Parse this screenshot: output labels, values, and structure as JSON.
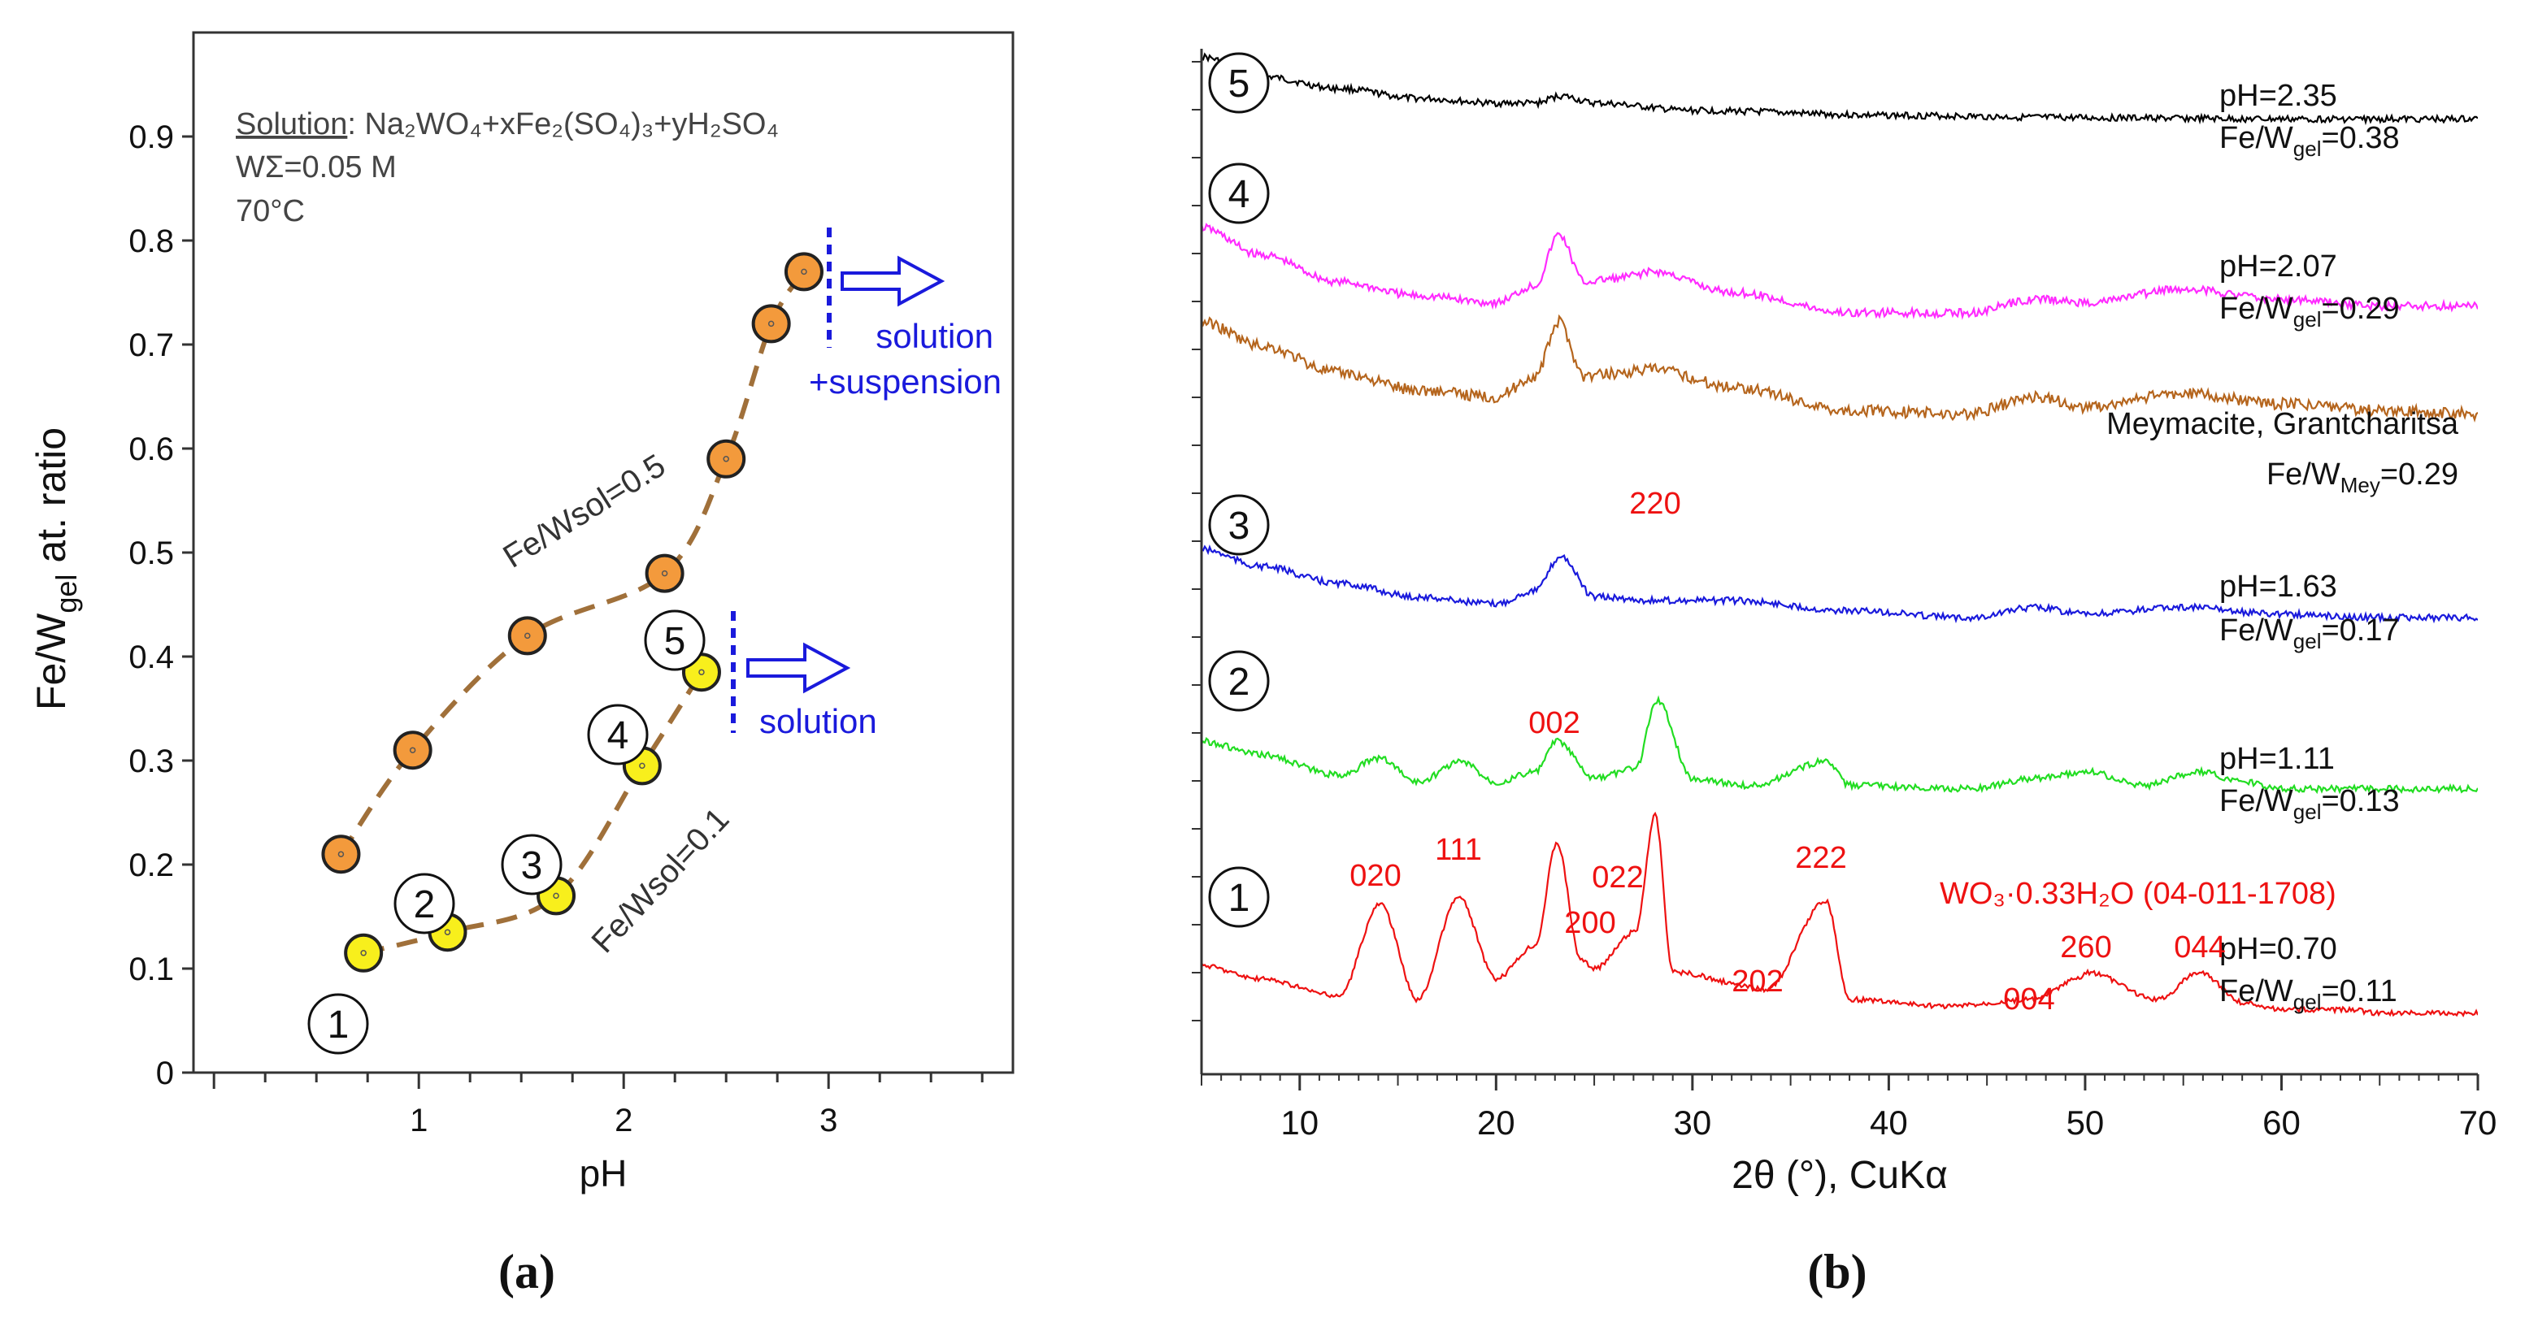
{
  "panel_a": {
    "label": "(a)",
    "solution_prefix": "Solution",
    "solution_formula": ": Na₂WO₄+xFe₂(SO₄)₃+yH₂SO₄",
    "w_total": "WΣ=0.05 M",
    "temperature": "70°C",
    "arrow_upper_label_1": "solution",
    "arrow_upper_label_2": "+suspension",
    "arrow_lower_label": "solution",
    "curve_label_upper": "Fe/Wsol=0.5",
    "curve_label_lower": "Fe/Wsol=0.1",
    "point_markers": [
      "1",
      "2",
      "3",
      "4",
      "5"
    ]
  },
  "panel_b": {
    "label": "(b)",
    "curve_markers": [
      "5",
      "4",
      "3",
      "2",
      "1"
    ],
    "annotations": [
      {
        "line1": "pH=2.35",
        "line2": "Fe/Wgel=0.38"
      },
      {
        "line1": "pH=2.07",
        "line2": "Fe/Wgel=0.29"
      },
      {
        "line1": "Meymacite, Grantcharitsa",
        "line2": "Fe/WMey=0.29"
      },
      {
        "line1": "pH=1.63",
        "line2": "Fe/Wgel=0.17"
      },
      {
        "line1": "pH=1.11",
        "line2": "Fe/Wgel=0.13"
      },
      {
        "line1": "pH=0.70",
        "line2": "Fe/Wgel=0.11"
      }
    ],
    "phase_label": "WO₃·0.33H₂O (04-011-1708)",
    "peak_labels": [
      "020",
      "111",
      "002",
      "200",
      "022",
      "220",
      "202",
      "222",
      "004",
      "260",
      "044"
    ]
  },
  "colors": {
    "orange_marker": "#f39a3c",
    "yellow_marker": "#f8ef1c",
    "dashed_curve": "#a0703a",
    "arrow_blue": "#1a1adc",
    "xrd_black": "#000000",
    "xrd_magenta": "#ff2bff",
    "xrd_brown": "#b5651d",
    "xrd_blue": "#1a1adc",
    "xrd_green": "#22dd22",
    "xrd_red": "#ee1111"
  },
  "chart_data": [
    {
      "type": "scatter",
      "title": "",
      "xlabel": "pH",
      "ylabel": "Fe/Wgel at. ratio",
      "xlim": [
        -0.1,
        3.9
      ],
      "ylim": [
        0,
        1.0
      ],
      "xticks": [
        "1",
        "2",
        "3"
      ],
      "yticks": [
        "0",
        "0.1",
        "0.2",
        "0.3",
        "0.4",
        "0.5",
        "0.6",
        "0.7",
        "0.8",
        "0.9"
      ],
      "series": [
        {
          "name": "Fe/Wsol=0.5",
          "x": [
            0.62,
            0.97,
            1.53,
            2.2,
            2.5,
            2.72,
            2.88
          ],
          "y": [
            0.21,
            0.31,
            0.42,
            0.48,
            0.59,
            0.72,
            0.77
          ]
        },
        {
          "name": "Fe/Wsol=0.1",
          "x": [
            0.73,
            1.14,
            1.67,
            2.09,
            2.38
          ],
          "y": [
            0.115,
            0.135,
            0.17,
            0.295,
            0.385
          ]
        }
      ]
    },
    {
      "type": "line",
      "title": "",
      "xlabel": "2θ (°), CuKα",
      "ylabel": "",
      "xlim": [
        5,
        70
      ],
      "xticks": [
        "10",
        "20",
        "30",
        "40",
        "50",
        "60",
        "70"
      ],
      "series": [
        {
          "name": "5 pH=2.35",
          "x": [
            5,
            8,
            12,
            16,
            20,
            22,
            23.3,
            25,
            30,
            40,
            50,
            60,
            70
          ],
          "y": [
            0.0,
            0.08,
            0.13,
            0.17,
            0.19,
            0.19,
            0.16,
            0.19,
            0.22,
            0.24,
            0.25,
            0.255,
            0.255
          ]
        },
        {
          "name": "4 pH=2.07",
          "x": [
            5,
            8,
            12,
            16,
            20,
            22,
            23.2,
            24.5,
            26,
            28,
            32,
            38,
            44,
            47.5,
            50,
            55,
            60,
            65,
            70
          ],
          "y": [
            0.0,
            0.08,
            0.16,
            0.2,
            0.22,
            0.17,
            0.02,
            0.16,
            0.15,
            0.13,
            0.19,
            0.25,
            0.25,
            0.21,
            0.22,
            0.18,
            0.21,
            0.23,
            0.23
          ]
        },
        {
          "name": "Meymacite, Grantcharitsa",
          "x": [
            5,
            8,
            12,
            16,
            20,
            22,
            23.2,
            24.5,
            26,
            28,
            32,
            38,
            44,
            47.5,
            50,
            55,
            60,
            65,
            70
          ],
          "y": [
            0.0,
            0.07,
            0.15,
            0.2,
            0.22,
            0.16,
            0.0,
            0.16,
            0.15,
            0.14,
            0.19,
            0.26,
            0.27,
            0.22,
            0.25,
            0.21,
            0.24,
            0.26,
            0.27
          ]
        },
        {
          "name": "3 pH=1.63",
          "x": [
            5,
            8,
            12,
            16,
            20,
            22,
            23.3,
            25,
            28,
            32,
            38,
            44,
            47.5,
            50,
            55,
            60,
            65,
            70
          ],
          "y": [
            0.0,
            0.05,
            0.1,
            0.14,
            0.16,
            0.12,
            0.02,
            0.14,
            0.15,
            0.15,
            0.18,
            0.2,
            0.17,
            0.19,
            0.17,
            0.19,
            0.2,
            0.2
          ]
        },
        {
          "name": "2 pH=1.11",
          "x": [
            5,
            8,
            12,
            14.1,
            16,
            18.2,
            20,
            22,
            23.1,
            25,
            27.1,
            28.2,
            30,
            33,
            36.8,
            38,
            44,
            47.5,
            50.1,
            53,
            55.8,
            58,
            60,
            65,
            70
          ],
          "y": [
            0.0,
            0.04,
            0.1,
            0.05,
            0.12,
            0.06,
            0.12,
            0.09,
            0.0,
            0.11,
            0.08,
            -0.12,
            0.11,
            0.13,
            0.06,
            0.13,
            0.14,
            0.11,
            0.09,
            0.13,
            0.09,
            0.12,
            0.14,
            0.14,
            0.14
          ]
        },
        {
          "name": "1 pH=0.70",
          "x": [
            5,
            8,
            12,
            14.1,
            16,
            18.1,
            20,
            22,
            23.1,
            24.3,
            25,
            27.1,
            28.1,
            29,
            33.8,
            36.8,
            38,
            43,
            47.4,
            49.7,
            50.1,
            53.7,
            55.8,
            58.1,
            60,
            63.5,
            65,
            70
          ],
          "y": [
            0.0,
            0.04,
            0.09,
            -0.18,
            0.1,
            -0.2,
            0.04,
            -0.06,
            -0.36,
            -0.02,
            0.01,
            -0.1,
            -0.44,
            0.02,
            0.07,
            -0.19,
            0.1,
            0.12,
            0.1,
            0.04,
            0.02,
            0.1,
            0.02,
            0.11,
            0.13,
            0.13,
            0.14,
            0.14
          ]
        }
      ]
    }
  ]
}
